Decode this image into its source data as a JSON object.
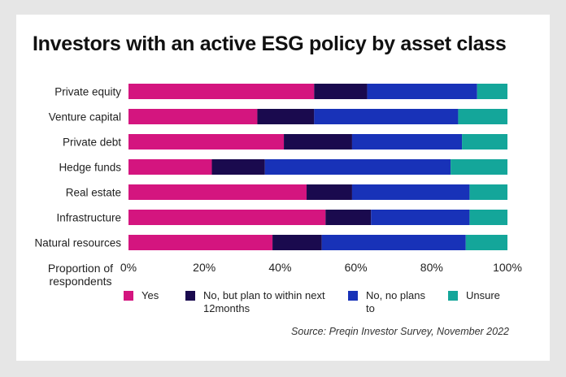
{
  "chart_data": {
    "type": "bar",
    "orientation": "horizontal",
    "stacked": true,
    "title": "Investors with an active ESG policy by asset class",
    "xlabel": "Proportion of respondents",
    "categories": [
      "Private equity",
      "Venture capital",
      "Private debt",
      "Hedge funds",
      "Real estate",
      "Infrastructure",
      "Natural resources"
    ],
    "series": [
      {
        "name": "Yes",
        "color": "#d4157f",
        "values": [
          49,
          34,
          41,
          22,
          47,
          52,
          38
        ]
      },
      {
        "name": "No, but plan to within next 12months",
        "color": "#1a0a4e",
        "values": [
          14,
          15,
          18,
          14,
          12,
          12,
          13
        ]
      },
      {
        "name": "No, no plans to",
        "color": "#1832b8",
        "values": [
          29,
          38,
          29,
          49,
          31,
          26,
          38
        ]
      },
      {
        "name": "Unsure",
        "color": "#14a69a",
        "values": [
          8,
          13,
          12,
          15,
          10,
          10,
          11
        ]
      }
    ],
    "xlim": [
      0,
      100
    ],
    "xticks": [
      "0%",
      "20%",
      "40%",
      "60%",
      "80%",
      "100%"
    ],
    "grid": false,
    "legend_position": "bottom",
    "source": "Source: Preqin Investor Survey, November 2022"
  }
}
